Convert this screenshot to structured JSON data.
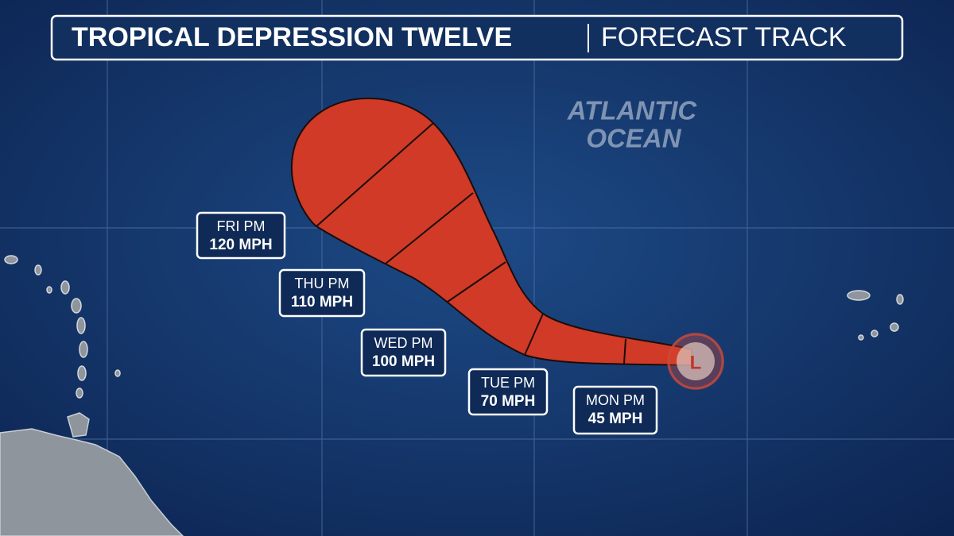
{
  "header": {
    "title": "TROPICAL DEPRESSION TWELVE",
    "subtitle": "FORECAST TRACK"
  },
  "map": {
    "ocean_label": [
      "ATLANTIC",
      "OCEAN"
    ],
    "storm_symbol": "L",
    "forecast_points": [
      {
        "day": "FRI PM",
        "wind": "120 MPH"
      },
      {
        "day": "THU PM",
        "wind": "110 MPH"
      },
      {
        "day": "WED PM",
        "wind": "100 MPH"
      },
      {
        "day": "TUE PM",
        "wind": "70 MPH"
      },
      {
        "day": "MON PM",
        "wind": "45 MPH"
      }
    ]
  }
}
